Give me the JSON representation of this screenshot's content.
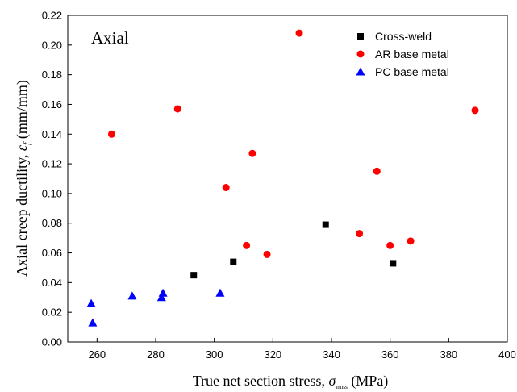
{
  "chart_data": {
    "type": "scatter",
    "annotation": "Axial",
    "xlabel": {
      "main": "True net section stress, ",
      "symbol": "σ",
      "sub": "mnss",
      "unit": " (MPa)"
    },
    "ylabel": {
      "main": "Axial creep ductility, ",
      "symbol": "ε",
      "sub": "f",
      "unit": " (mm/mm)"
    },
    "xlim": [
      250,
      400
    ],
    "ylim": [
      0,
      0.22
    ],
    "xticks": [
      260,
      280,
      300,
      320,
      340,
      360,
      380,
      400
    ],
    "xtick_labels": [
      "260",
      "280",
      "300",
      "320",
      "340",
      "360",
      "380",
      "400"
    ],
    "yticks": [
      0,
      0.02,
      0.04,
      0.06,
      0.08,
      0.1,
      0.12,
      0.14,
      0.16,
      0.18,
      0.2,
      0.22
    ],
    "ytick_labels": [
      "0.00",
      "0.02",
      "0.04",
      "0.06",
      "0.08",
      "0.10",
      "0.12",
      "0.14",
      "0.16",
      "0.18",
      "0.20",
      "0.22"
    ],
    "grid": false,
    "legend_position": "top-right",
    "series": [
      {
        "name": "Cross-weld",
        "marker": "square",
        "color": "#000000",
        "points": [
          {
            "x": 293,
            "y": 0.045
          },
          {
            "x": 306.5,
            "y": 0.054
          },
          {
            "x": 338,
            "y": 0.079
          },
          {
            "x": 361,
            "y": 0.053
          }
        ]
      },
      {
        "name": "AR base metal",
        "marker": "circle",
        "color": "#ff0000",
        "points": [
          {
            "x": 265,
            "y": 0.14
          },
          {
            "x": 287.5,
            "y": 0.157
          },
          {
            "x": 304,
            "y": 0.104
          },
          {
            "x": 311,
            "y": 0.065
          },
          {
            "x": 313,
            "y": 0.127
          },
          {
            "x": 318,
            "y": 0.059
          },
          {
            "x": 329,
            "y": 0.208
          },
          {
            "x": 349.5,
            "y": 0.073
          },
          {
            "x": 355.5,
            "y": 0.115
          },
          {
            "x": 360,
            "y": 0.065
          },
          {
            "x": 367,
            "y": 0.068
          },
          {
            "x": 389,
            "y": 0.156
          }
        ]
      },
      {
        "name": "PC base metal",
        "marker": "triangle",
        "color": "#0000ff",
        "points": [
          {
            "x": 258,
            "y": 0.026
          },
          {
            "x": 258.5,
            "y": 0.013
          },
          {
            "x": 272,
            "y": 0.031
          },
          {
            "x": 282,
            "y": 0.03
          },
          {
            "x": 282.5,
            "y": 0.033
          },
          {
            "x": 302,
            "y": 0.033
          }
        ]
      }
    ]
  }
}
